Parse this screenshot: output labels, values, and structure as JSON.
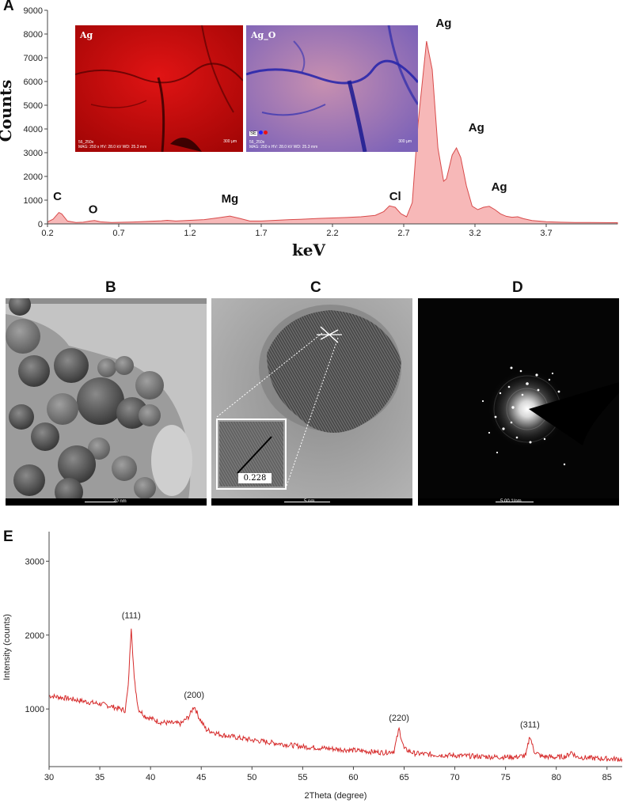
{
  "panel_labels": {
    "a": "A",
    "b": "B",
    "c": "C",
    "d": "D",
    "e": "E"
  },
  "colors": {
    "eds_fill": "#f7b8b8",
    "eds_line": "#d84b4b",
    "xrd_line": "#d62b2b"
  },
  "chart_data": [
    {
      "id": "eds",
      "type": "area",
      "xlabel": "keV",
      "ylabel": "Counts",
      "xlim": [
        0.2,
        4.2
      ],
      "ylim": [
        0,
        9000
      ],
      "xticks": [
        0.2,
        0.7,
        1.2,
        1.7,
        2.2,
        2.7,
        3.2,
        3.7
      ],
      "xtick_labels": [
        "0.2",
        "0.7",
        "1.2",
        "1.7",
        "2.2",
        "2.7",
        "3.2",
        "3.7"
      ],
      "yticks": [
        0,
        1000,
        2000,
        3000,
        4000,
        5000,
        6000,
        7000,
        8000,
        9000
      ],
      "ytick_labels": [
        "0",
        "1000",
        "2000",
        "3000",
        "4000",
        "5000",
        "6000",
        "7000",
        "8000",
        "9000"
      ],
      "grid": false,
      "x": [
        0.2,
        0.24,
        0.28,
        0.3,
        0.34,
        0.4,
        0.45,
        0.5,
        0.53,
        0.57,
        0.65,
        0.8,
        1.0,
        1.04,
        1.1,
        1.2,
        1.3,
        1.4,
        1.48,
        1.55,
        1.62,
        1.7,
        1.8,
        1.9,
        2.0,
        2.1,
        2.2,
        2.3,
        2.4,
        2.5,
        2.56,
        2.6,
        2.64,
        2.68,
        2.72,
        2.76,
        2.8,
        2.86,
        2.9,
        2.94,
        2.98,
        3.0,
        3.04,
        3.07,
        3.1,
        3.14,
        3.18,
        3.22,
        3.26,
        3.3,
        3.34,
        3.38,
        3.42,
        3.46,
        3.5,
        3.54,
        3.6,
        3.7,
        3.8,
        3.9,
        4.0,
        4.2
      ],
      "y": [
        80,
        200,
        480,
        420,
        120,
        60,
        70,
        120,
        140,
        90,
        60,
        80,
        130,
        150,
        120,
        150,
        180,
        260,
        330,
        230,
        120,
        120,
        150,
        180,
        200,
        230,
        250,
        270,
        300,
        360,
        520,
        760,
        700,
        430,
        300,
        900,
        4200,
        7700,
        6500,
        3200,
        1800,
        1900,
        2900,
        3200,
        2800,
        1600,
        750,
        600,
        700,
        740,
        600,
        420,
        320,
        280,
        300,
        220,
        140,
        90,
        70,
        60,
        60,
        50
      ],
      "annotations": [
        {
          "label": "C",
          "x": 0.27,
          "y": 1000
        },
        {
          "label": "O",
          "x": 0.52,
          "y": 450
        },
        {
          "label": "Mg",
          "x": 1.48,
          "y": 900
        },
        {
          "label": "Cl",
          "x": 2.64,
          "y": 1000
        },
        {
          "label": "Ag",
          "x": 2.98,
          "y": 8300
        },
        {
          "label": "Ag",
          "x": 3.21,
          "y": 3900
        },
        {
          "label": "Ag",
          "x": 3.37,
          "y": 1400
        }
      ]
    },
    {
      "id": "xrd",
      "type": "line",
      "xlabel": "2Theta (degree)",
      "ylabel": "Intensity (counts)",
      "xlim": [
        30,
        86.5
      ],
      "ylim": [
        220,
        3400
      ],
      "xticks": [
        30,
        35,
        40,
        45,
        50,
        55,
        60,
        65,
        70,
        75,
        80,
        85
      ],
      "xtick_labels": [
        "30",
        "35",
        "40",
        "45",
        "50",
        "55",
        "60",
        "65",
        "70",
        "75",
        "80",
        "85"
      ],
      "yticks": [
        1000,
        2000,
        3000
      ],
      "ytick_labels": [
        "1000",
        "2000",
        "3000"
      ],
      "grid": false,
      "x": [
        30,
        32,
        34,
        35,
        36,
        37,
        37.5,
        37.8,
        38.1,
        38.4,
        38.8,
        39.5,
        41,
        43,
        43.8,
        44.3,
        44.8,
        45.5,
        47,
        50,
        55,
        60,
        62,
        63,
        64,
        64.5,
        65,
        66,
        68,
        70,
        72,
        74,
        76,
        77,
        77.4,
        77.8,
        78.5,
        80,
        81,
        81.5,
        82,
        84,
        86.5
      ],
      "y": [
        1180,
        1140,
        1090,
        1070,
        1040,
        1000,
        980,
        1300,
        2120,
        1400,
        1000,
        900,
        820,
        800,
        900,
        1040,
        880,
        720,
        650,
        580,
        490,
        440,
        420,
        410,
        430,
        730,
        460,
        400,
        380,
        370,
        360,
        350,
        350,
        370,
        640,
        430,
        360,
        345,
        360,
        420,
        350,
        330,
        320
      ],
      "annotations": [
        {
          "label": "(111)",
          "x": 38.1,
          "y": 2230
        },
        {
          "label": "(200)",
          "x": 44.3,
          "y": 1150
        },
        {
          "label": "(220)",
          "x": 64.5,
          "y": 840
        },
        {
          "label": "(311)",
          "x": 77.4,
          "y": 750
        }
      ]
    }
  ],
  "eds_maps": [
    {
      "label": "Ag",
      "info1": "56_250x",
      "info2": "MAG: 250 x  HV: 28.0 kV  WD: 25.3 mm",
      "scale": "300 µm"
    },
    {
      "label": "Ag_O",
      "info1": "56_250x",
      "info2": "MAG: 250 x  HV: 28.0 kV  WD: 25.3 mm",
      "scale": "300 µm",
      "legend": "SE"
    }
  ],
  "tem": {
    "b_scale": "20 nm",
    "c_scale": "5 nm",
    "c_inset_value": "0.228",
    "d_scale": "5.00 1/nm"
  }
}
